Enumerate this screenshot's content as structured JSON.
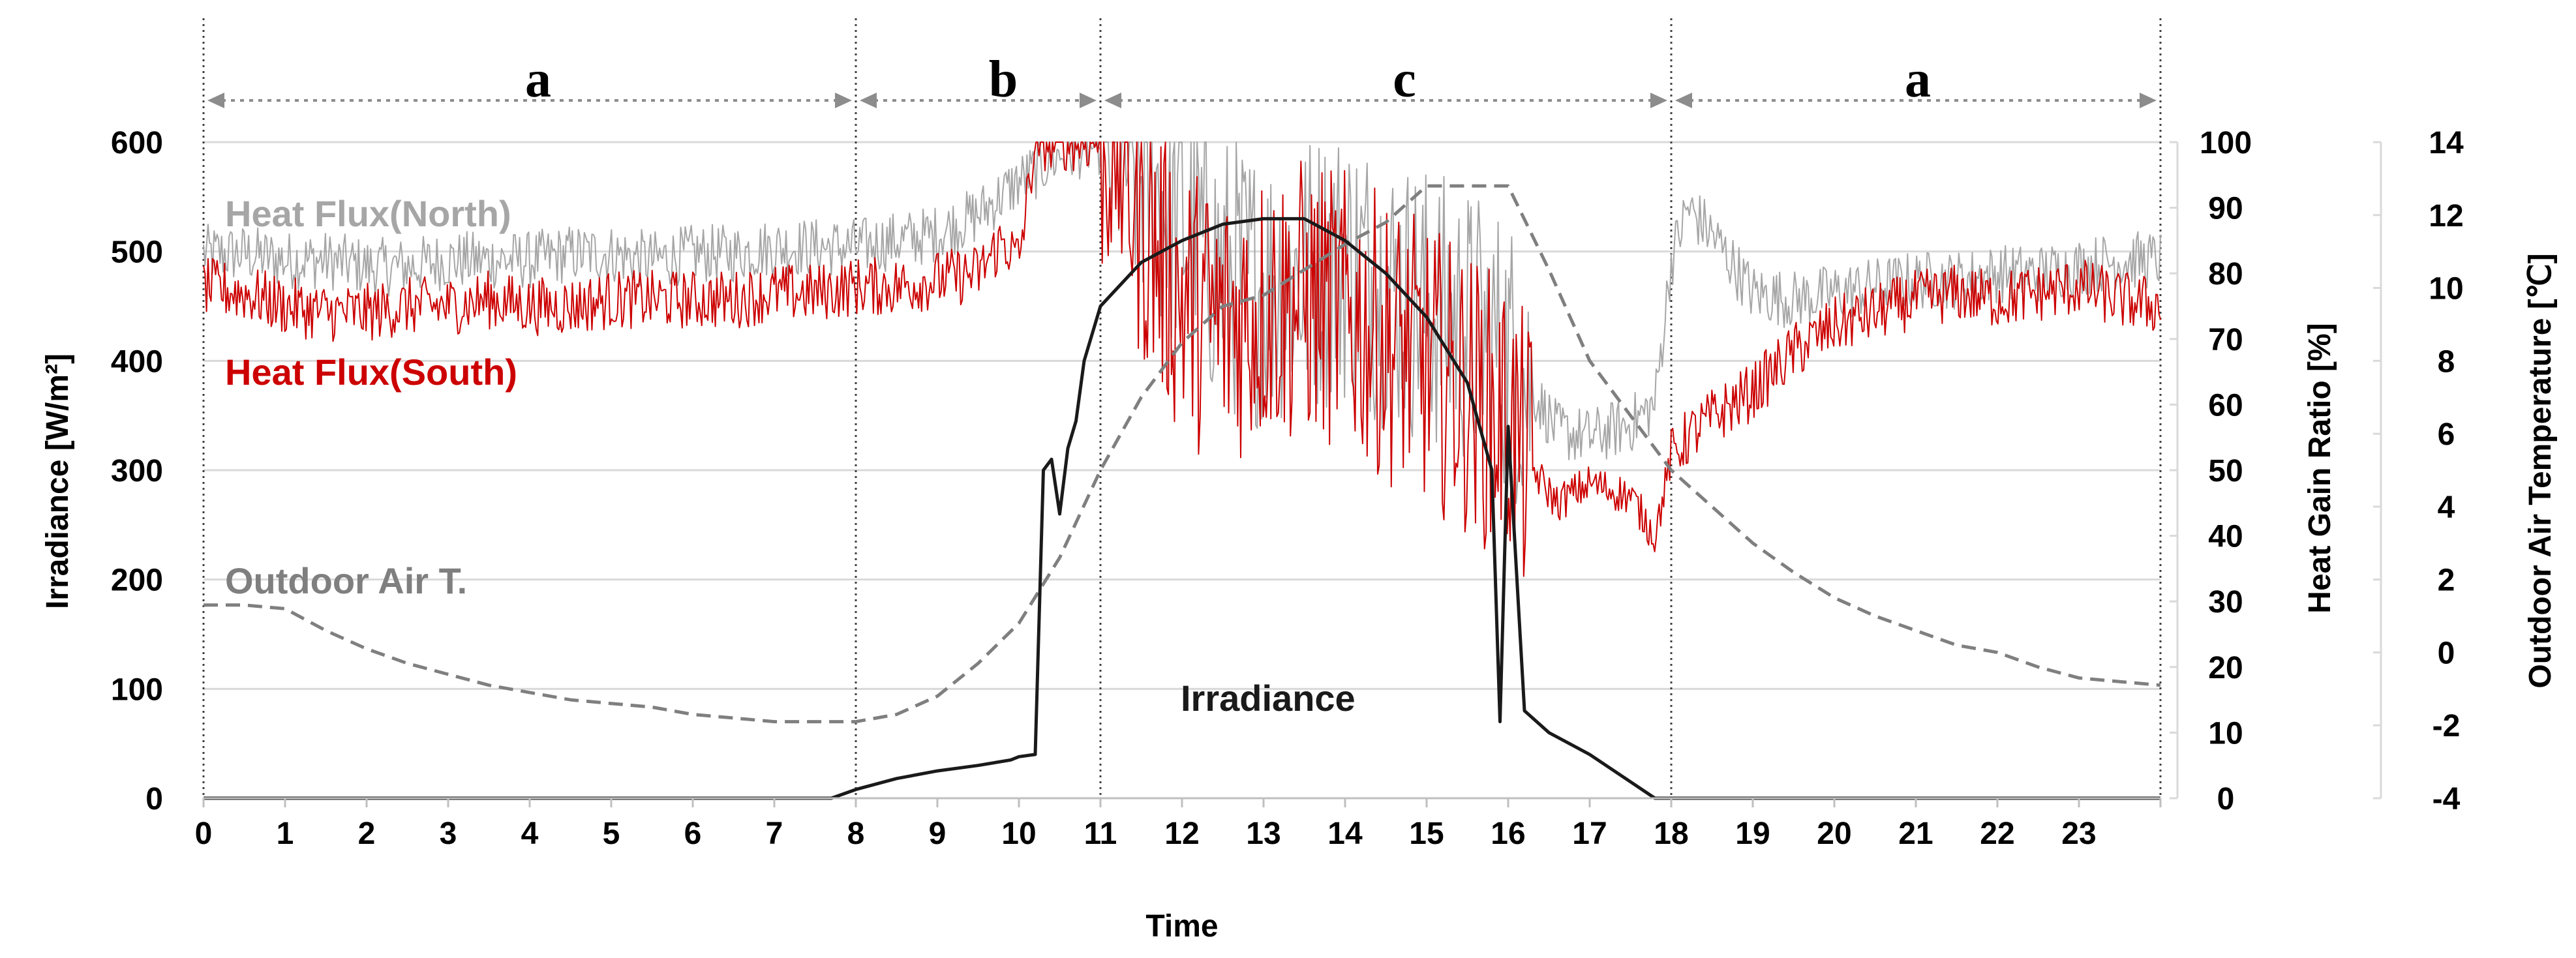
{
  "chart_data": {
    "type": "line",
    "xlabel": "Time",
    "x_ticks": [
      "0",
      "1",
      "2",
      "3",
      "4",
      "5",
      "6",
      "7",
      "8",
      "9",
      "10",
      "11",
      "12",
      "13",
      "14",
      "15",
      "16",
      "17",
      "18",
      "19",
      "20",
      "21",
      "22",
      "23"
    ],
    "xlim": [
      0,
      24
    ],
    "axes": {
      "left": {
        "label": "Irradiance [W/m²]",
        "lim": [
          0,
          600
        ],
        "ticks": [
          "0",
          "100",
          "200",
          "300",
          "400",
          "500",
          "600"
        ]
      },
      "right1": {
        "label": "Heat Gain Ratio [%]",
        "lim": [
          0,
          100
        ],
        "ticks": [
          "0",
          "10",
          "20",
          "30",
          "40",
          "50",
          "60",
          "70",
          "80",
          "90",
          "100"
        ]
      },
      "right2": {
        "label": "Outdoor Air Temperature [℃]",
        "lim": [
          -4,
          14
        ],
        "ticks": [
          "-4",
          "-2",
          "0",
          "2",
          "4",
          "6",
          "8",
          "10",
          "12",
          "14"
        ]
      }
    },
    "periods": [
      {
        "label": "a",
        "start": 0,
        "end": 8
      },
      {
        "label": "b",
        "start": 8,
        "end": 11
      },
      {
        "label": "c",
        "start": 11,
        "end": 18
      },
      {
        "label": "a",
        "start": 18,
        "end": 24
      }
    ],
    "series": [
      {
        "name": "Heat Flux(North)",
        "axis": "right1",
        "color": "#a6a6a6",
        "x": [
          0,
          0.5,
          1,
          1.5,
          2,
          2.5,
          3,
          3.5,
          4,
          4.5,
          5,
          5.5,
          6,
          6.5,
          7,
          7.5,
          8,
          8.5,
          9,
          9.5,
          10,
          10.5,
          10.8,
          11.2,
          11.5,
          12,
          12.5,
          13,
          13.5,
          14,
          14.5,
          15,
          15.5,
          16,
          16.3,
          16.6,
          17,
          17.5,
          17.8,
          18,
          18.2,
          18.5,
          19,
          19.5,
          20,
          20.5,
          21,
          21.5,
          22,
          22.5,
          23,
          23.5,
          24
        ],
        "y": [
          83,
          83,
          82,
          82,
          81,
          81,
          82,
          82,
          82,
          83,
          83,
          82,
          83,
          83,
          84,
          84,
          84,
          85,
          86,
          89,
          94,
          98,
          99,
          100,
          95,
          88,
          80,
          78,
          80,
          82,
          78,
          75,
          72,
          68,
          62,
          56,
          55,
          57,
          60,
          82,
          90,
          86,
          77,
          76,
          77,
          78,
          79,
          79,
          80,
          80,
          81,
          82,
          82
        ]
      },
      {
        "name": "Heat Flux(South)",
        "axis": "right1",
        "color": "#cc0000",
        "x": [
          0,
          0.5,
          1,
          1.5,
          2,
          2.5,
          3,
          3.5,
          4,
          4.5,
          5,
          5.5,
          6,
          6.5,
          7,
          7.5,
          8,
          8.5,
          9,
          9.5,
          9.8,
          10,
          10.2,
          10.4,
          10.6,
          10.8,
          11.2,
          11.5,
          12,
          12.5,
          13,
          13.5,
          14,
          14.5,
          15,
          15.5,
          16,
          16.3,
          16.6,
          17,
          17.5,
          17.8,
          18,
          18.2,
          18.5,
          19,
          19.5,
          20,
          20.5,
          21,
          21.5,
          22,
          22.5,
          23,
          23.5,
          24
        ],
        "y": [
          78,
          77,
          75,
          74,
          74,
          75,
          75,
          76,
          75,
          75,
          76,
          76,
          76,
          76,
          77,
          77,
          78,
          78,
          79,
          80,
          85,
          82,
          100,
          100,
          100,
          100,
          100,
          88,
          76,
          72,
          75,
          76,
          74,
          70,
          66,
          62,
          57,
          50,
          45,
          48,
          46,
          40,
          52,
          55,
          58,
          62,
          68,
          72,
          74,
          76,
          77,
          76,
          77,
          78,
          76,
          75
        ]
      },
      {
        "name": "Outdoor Air T.",
        "axis": "right2",
        "color": "#7f7f7f",
        "dash": true,
        "x": [
          0,
          0.5,
          1,
          1.5,
          2,
          2.5,
          3,
          3.5,
          4,
          4.5,
          5,
          5.5,
          6,
          6.5,
          7,
          7.5,
          8,
          8.5,
          9,
          9.5,
          10,
          10.5,
          11,
          11.5,
          12,
          12.5,
          13,
          13.5,
          14,
          14.5,
          15,
          15.5,
          16,
          16.5,
          17,
          17.5,
          18,
          18.5,
          19,
          19.5,
          20,
          20.5,
          21,
          21.5,
          22,
          22.5,
          23,
          23.5,
          24
        ],
        "y": [
          1.3,
          1.3,
          1.2,
          0.6,
          0.1,
          -0.3,
          -0.6,
          -0.9,
          -1.1,
          -1.3,
          -1.4,
          -1.5,
          -1.7,
          -1.8,
          -1.9,
          -1.9,
          -1.9,
          -1.7,
          -1.2,
          -0.3,
          0.8,
          2.6,
          5.0,
          7.0,
          8.5,
          9.5,
          9.8,
          10.5,
          11.2,
          11.8,
          12.8,
          12.8,
          12.8,
          10.5,
          8.0,
          6.5,
          5.0,
          4.0,
          3.0,
          2.2,
          1.5,
          1.0,
          0.6,
          0.2,
          0.0,
          -0.4,
          -0.7,
          -0.8,
          -0.9
        ]
      },
      {
        "name": "Irradiance",
        "axis": "left",
        "color": "#1a1a1a",
        "x": [
          0,
          7.7,
          8,
          8.5,
          9,
          9.5,
          9.9,
          10,
          10.2,
          10.3,
          10.4,
          10.5,
          10.6,
          10.7,
          10.8,
          11,
          11.5,
          12,
          12.5,
          13,
          13.5,
          14,
          14.5,
          15,
          15.5,
          15.8,
          15.9,
          16,
          16.2,
          16.5,
          17,
          17.5,
          17.8,
          18,
          24
        ],
        "y": [
          0,
          0,
          8,
          18,
          25,
          30,
          35,
          38,
          40,
          300,
          310,
          260,
          320,
          345,
          400,
          450,
          490,
          510,
          525,
          530,
          530,
          510,
          480,
          440,
          380,
          300,
          70,
          340,
          80,
          60,
          40,
          15,
          0,
          0,
          0
        ]
      }
    ]
  }
}
